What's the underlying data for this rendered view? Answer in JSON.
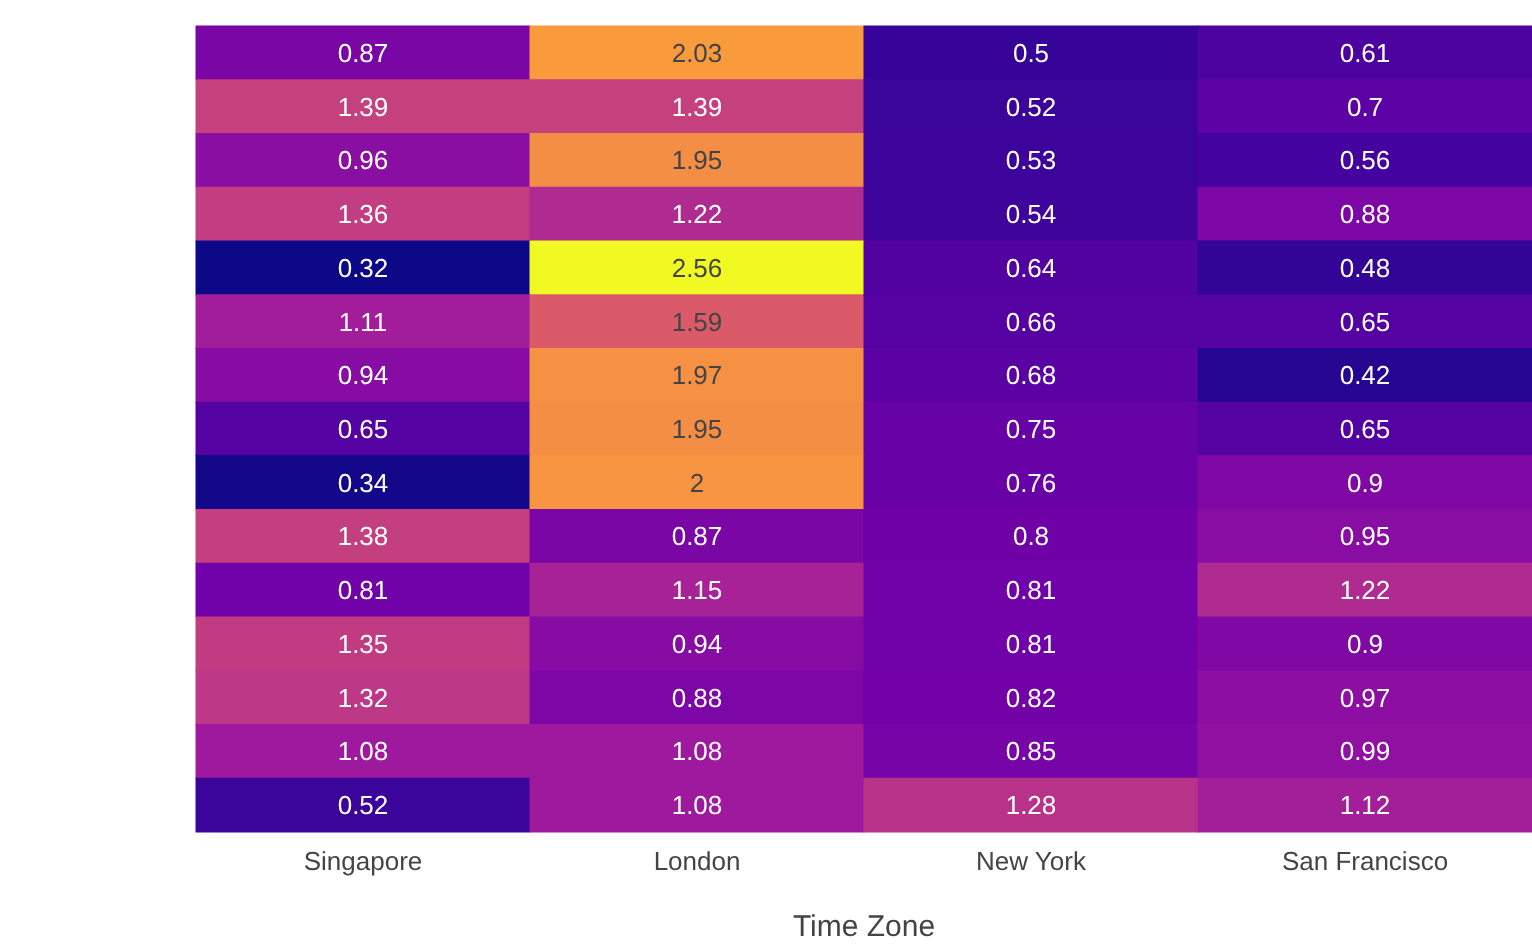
{
  "chart_data": {
    "type": "heatmap",
    "xlabel": "Time Zone",
    "categories": [
      "Singapore",
      "London",
      "New York",
      "San Francisco"
    ],
    "y_categories": [
      null,
      null,
      null,
      null,
      null,
      null,
      null,
      null,
      null,
      null,
      null,
      null,
      null,
      null,
      null
    ],
    "cells": [
      [
        0.87,
        2.03,
        0.5,
        0.61
      ],
      [
        1.39,
        1.39,
        0.52,
        0.7
      ],
      [
        0.96,
        1.95,
        0.53,
        0.56
      ],
      [
        1.36,
        1.22,
        0.54,
        0.88
      ],
      [
        0.32,
        2.56,
        0.64,
        0.48
      ],
      [
        1.11,
        1.59,
        0.66,
        0.65
      ],
      [
        0.94,
        1.97,
        0.68,
        0.42
      ],
      [
        0.65,
        1.95,
        0.75,
        0.65
      ],
      [
        0.34,
        2,
        0.76,
        0.9
      ],
      [
        1.38,
        0.87,
        0.8,
        0.95
      ],
      [
        0.81,
        1.15,
        0.81,
        1.22
      ],
      [
        1.35,
        0.94,
        0.81,
        0.9
      ],
      [
        1.32,
        0.88,
        0.82,
        0.97
      ],
      [
        1.08,
        1.08,
        0.85,
        0.99
      ],
      [
        0.52,
        1.08,
        1.28,
        1.12
      ]
    ],
    "data_labels": true
  }
}
